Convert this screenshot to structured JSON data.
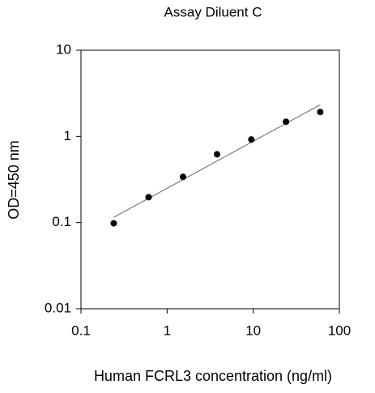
{
  "chart_data": {
    "type": "scatter",
    "title": "Assay Diluent C",
    "x_label": "Human FCRL3 concentration (ng/ml)",
    "y_label": "OD=450 nm",
    "x": [
      0.24,
      0.61,
      1.53,
      3.8,
      9.5,
      24,
      60
    ],
    "values": [
      0.098,
      0.197,
      0.339,
      0.62,
      0.92,
      1.48,
      1.92
    ],
    "color": "#000000",
    "fit": {
      "x": [
        0.24,
        60
      ],
      "values": [
        0.115,
        2.33
      ],
      "color": "#666666"
    },
    "xlim": [
      0.1,
      100
    ],
    "xticks": [
      0.1,
      1,
      10,
      100
    ],
    "ylim": [
      0.01,
      10
    ],
    "yticks": [
      0.01,
      0.1,
      1,
      10
    ],
    "xscale": "log",
    "yscale": "log",
    "grid": false
  }
}
